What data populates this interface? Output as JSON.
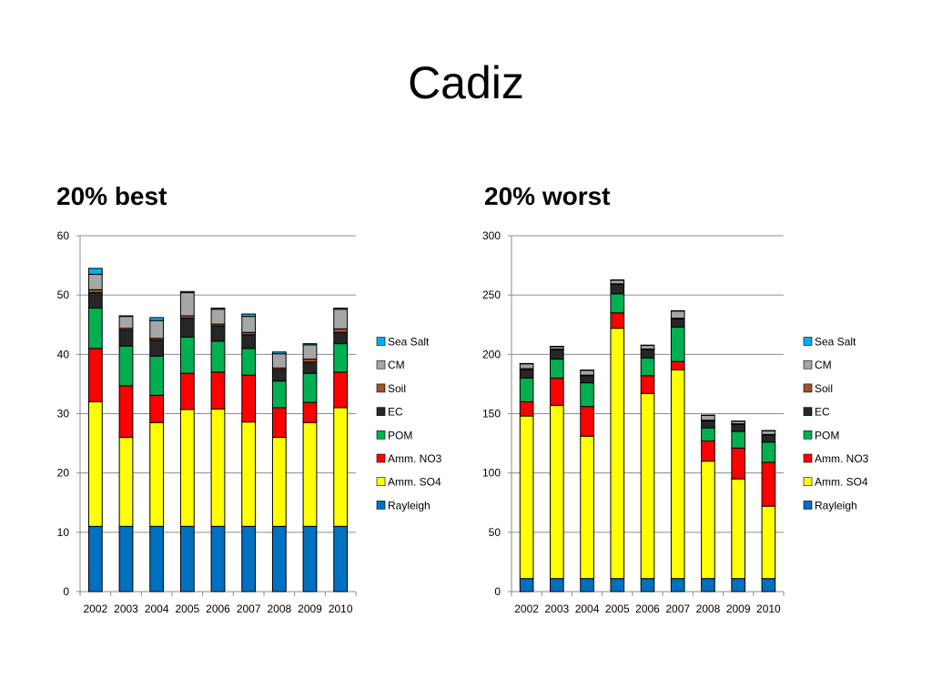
{
  "slide": {
    "title": "Cadiz"
  },
  "colors": {
    "Rayleigh": "#0070c0",
    "Amm. SO4": "#ffff00",
    "Amm. NO3": "#ff0000",
    "POM": "#00b050",
    "EC": "#262626",
    "Soil": "#a0522d",
    "CM": "#a6a6a6",
    "Sea Salt": "#00b0f0"
  },
  "panels": [
    {
      "heading": "20% best"
    },
    {
      "heading": "20% worst"
    }
  ],
  "chart_data": [
    {
      "type": "bar",
      "stacked": true,
      "title": "20% best",
      "xlabel": "",
      "ylabel": "",
      "ylim": [
        0,
        60
      ],
      "yticks": [
        0,
        10,
        20,
        30,
        40,
        50,
        60
      ],
      "grid": true,
      "legend": "right",
      "legend_order": [
        "Sea Salt",
        "CM",
        "Soil",
        "EC",
        "POM",
        "Amm. NO3",
        "Amm. SO4",
        "Rayleigh"
      ],
      "categories": [
        "2002",
        "2003",
        "2004",
        "2005",
        "2006",
        "2007",
        "2008",
        "2009",
        "2010"
      ],
      "series": [
        {
          "name": "Rayleigh",
          "values": [
            11,
            11,
            11,
            11,
            11,
            11,
            11,
            11,
            11
          ]
        },
        {
          "name": "Amm. SO4",
          "values": [
            21,
            15,
            17.5,
            19.7,
            19.8,
            17.6,
            15,
            17.5,
            20
          ]
        },
        {
          "name": "Amm. NO3",
          "values": [
            9,
            8.7,
            4.6,
            6.1,
            6.2,
            7.9,
            5,
            3.4,
            6
          ]
        },
        {
          "name": "POM",
          "values": [
            6.8,
            6.7,
            6.6,
            6.1,
            5.2,
            4.5,
            4.5,
            4.9,
            4.8
          ]
        },
        {
          "name": "EC",
          "values": [
            2.6,
            2.7,
            2.7,
            3.2,
            2.6,
            2.3,
            1.9,
            1.9,
            1.9
          ]
        },
        {
          "name": "Soil",
          "values": [
            0.5,
            0.3,
            0.3,
            0.4,
            0.3,
            0.4,
            0.3,
            0.5,
            0.6
          ]
        },
        {
          "name": "CM",
          "values": [
            2.6,
            2,
            3,
            3.9,
            2.5,
            2.7,
            2.4,
            2.4,
            3.3
          ]
        },
        {
          "name": "Sea Salt",
          "values": [
            1,
            0.1,
            0.5,
            0.2,
            0.2,
            0.4,
            0.3,
            0.2,
            0.2
          ]
        }
      ]
    },
    {
      "type": "bar",
      "stacked": true,
      "title": "20% worst",
      "xlabel": "",
      "ylabel": "",
      "ylim": [
        0,
        300
      ],
      "yticks": [
        0,
        50,
        100,
        150,
        200,
        250,
        300
      ],
      "grid": true,
      "legend": "right",
      "legend_order": [
        "Sea Salt",
        "CM",
        "Soil",
        "EC",
        "POM",
        "Amm. NO3",
        "Amm. SO4",
        "Rayleigh"
      ],
      "categories": [
        "2002",
        "2003",
        "2004",
        "2005",
        "2006",
        "2007",
        "2008",
        "2009",
        "2010"
      ],
      "series": [
        {
          "name": "Rayleigh",
          "values": [
            11,
            11,
            11,
            11,
            11,
            11,
            11,
            11,
            11
          ]
        },
        {
          "name": "Amm. SO4",
          "values": [
            137,
            146,
            120,
            211,
            156,
            176,
            99,
            84,
            61
          ]
        },
        {
          "name": "Amm. NO3",
          "values": [
            12,
            23,
            25,
            13,
            15,
            7,
            17,
            26,
            37
          ]
        },
        {
          "name": "POM",
          "values": [
            20,
            16,
            20,
            16,
            15,
            29,
            11,
            14,
            17
          ]
        },
        {
          "name": "EC",
          "values": [
            7,
            8,
            6,
            8,
            7,
            7,
            6,
            6,
            6
          ]
        },
        {
          "name": "Soil",
          "values": [
            1,
            0.5,
            0.5,
            0.5,
            0.5,
            0.5,
            0.5,
            0.5,
            0.5
          ]
        },
        {
          "name": "CM",
          "values": [
            4,
            2,
            4,
            3,
            3,
            6,
            4,
            2,
            3
          ]
        },
        {
          "name": "Sea Salt",
          "values": [
            0.3,
            0.3,
            0.3,
            0.3,
            0.3,
            0.3,
            0.3,
            0.3,
            0.3
          ]
        }
      ]
    }
  ]
}
